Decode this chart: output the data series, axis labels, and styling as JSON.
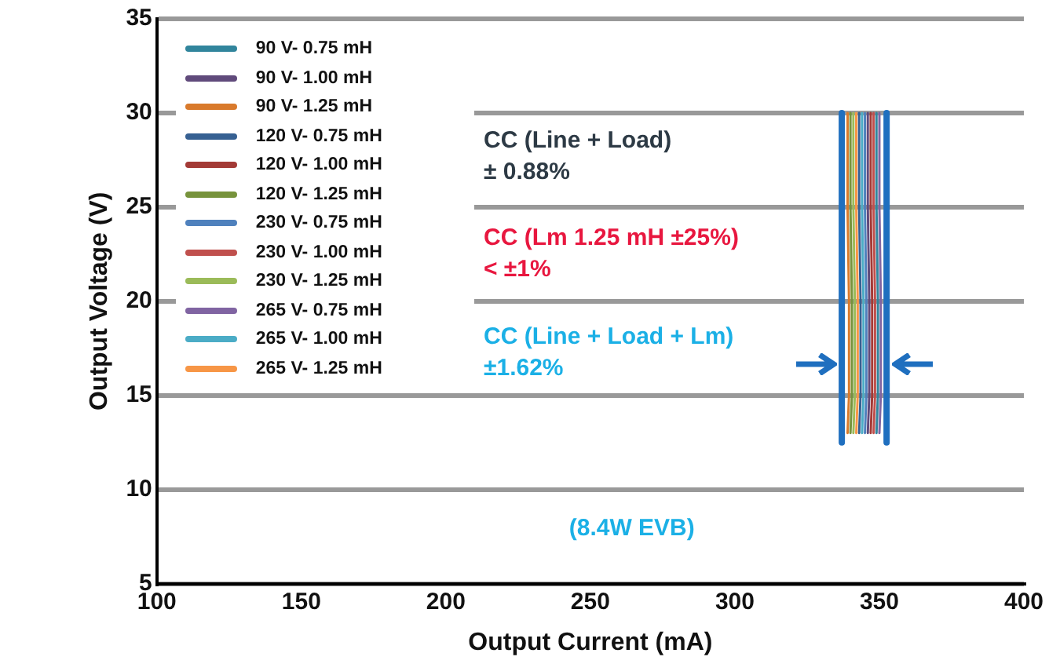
{
  "chart_data": {
    "type": "line",
    "xlabel": "Output Current (mA)",
    "ylabel": "Output Voltage (V)",
    "xlim": [
      100,
      400
    ],
    "xticks": [
      100,
      150,
      200,
      250,
      300,
      350,
      400
    ],
    "ylim": [
      5,
      35
    ],
    "yticks": [
      5,
      10,
      15,
      20,
      25,
      30,
      35
    ],
    "grid": "y",
    "legend": "top left",
    "marker": "none",
    "line_style": "solid",
    "series": [
      {
        "name": "90 V- 0.75 mH",
        "color": "#31859c",
        "x": [
          349,
          349,
          349.5,
          349.5,
          349
        ],
        "values": [
          30,
          25,
          20,
          15,
          13
        ]
      },
      {
        "name": "90 V- 1.00 mH",
        "color": "#604a7b",
        "x": [
          346,
          346,
          346.5,
          346.5,
          346
        ],
        "values": [
          30,
          25,
          20,
          15,
          13
        ]
      },
      {
        "name": "90 V- 1.25 mH",
        "color": "#d97a2c",
        "x": [
          339,
          339,
          339.5,
          339.5,
          339
        ],
        "values": [
          30,
          25,
          20,
          15,
          13
        ]
      },
      {
        "name": "120 V- 0.75 mH",
        "color": "#366092",
        "x": [
          343,
          343,
          343.5,
          343.5,
          343
        ],
        "values": [
          30,
          25,
          20,
          15,
          13
        ]
      },
      {
        "name": "120 V- 1.00 mH",
        "color": "#a33a36",
        "x": [
          347,
          347,
          347.5,
          347.5,
          347
        ],
        "values": [
          30,
          25,
          20,
          15,
          13
        ]
      },
      {
        "name": "120 V- 1.25 mH",
        "color": "#77933c",
        "x": [
          340,
          340,
          340.5,
          340.5,
          340
        ],
        "values": [
          30,
          25,
          20,
          15,
          13
        ]
      },
      {
        "name": "230 V- 0.75 mH",
        "color": "#4f81bd",
        "x": [
          345,
          345,
          345.5,
          345.5,
          345
        ],
        "values": [
          30,
          25,
          20,
          15,
          13
        ]
      },
      {
        "name": "230 V- 1.00 mH",
        "color": "#c0504d",
        "x": [
          348,
          348,
          348.5,
          348.5,
          348
        ],
        "values": [
          30,
          25,
          20,
          15,
          13
        ]
      },
      {
        "name": "230 V- 1.25 mH",
        "color": "#9bbb59",
        "x": [
          341,
          341,
          341.5,
          341.5,
          341
        ],
        "values": [
          30,
          25,
          20,
          15,
          13
        ]
      },
      {
        "name": "265 V- 0.75 mH",
        "color": "#8064a2",
        "x": [
          350,
          350,
          350.5,
          350.5,
          350
        ],
        "values": [
          30,
          25,
          20,
          15,
          13
        ]
      },
      {
        "name": "265 V- 1.00 mH",
        "color": "#4bacc6",
        "x": [
          344,
          344,
          344.5,
          344.5,
          344
        ],
        "values": [
          30,
          25,
          20,
          15,
          13
        ]
      },
      {
        "name": "265 V- 1.25 mH",
        "color": "#f79646",
        "x": [
          342,
          342,
          342.5,
          342.5,
          342
        ],
        "values": [
          30,
          25,
          20,
          15,
          13
        ]
      },
      {
        "color": "#1f6fbf",
        "x": [
          337,
          337
        ],
        "values": [
          12.5,
          30
        ]
      },
      {
        "color": "#1f6fbf",
        "x": [
          352.5,
          352.5
        ],
        "values": [
          12.5,
          30
        ]
      }
    ],
    "annotations": [
      "CC (Line + Load)\n± 0.88%",
      "CC (Lm 1.25 mH ±25%)\n< ±1%",
      "CC (Line + Load + Lm)\n±1.62%",
      "(8.4W EVB)"
    ]
  }
}
